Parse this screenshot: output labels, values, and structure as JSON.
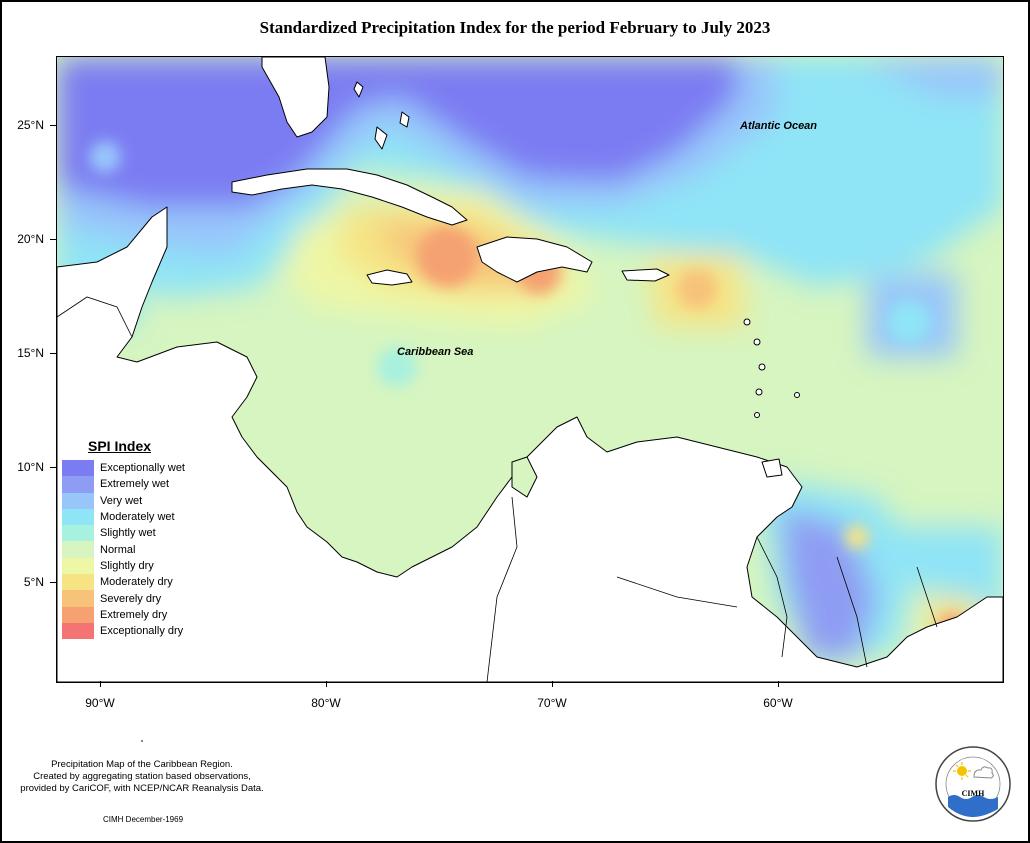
{
  "title": "Standardized Precipitation Index for the period February to July 2023",
  "map": {
    "longitude_range": [
      -92,
      -50
    ],
    "latitude_range": [
      1,
      28.5
    ],
    "y_axis_labels": [
      "25°N",
      "20°N",
      "15°N",
      "10°N",
      "5°N"
    ],
    "x_axis_labels": [
      "90°W",
      "80°W",
      "70°W",
      "60°W"
    ],
    "region_labels": {
      "atlantic": "Atlantic Ocean",
      "caribbean": "Caribbean Sea"
    },
    "colors": {
      "land": "#ffffff",
      "coast": "#000000"
    }
  },
  "legend": {
    "title": "SPI Index",
    "items": [
      {
        "label": "Exceptionally wet",
        "color": "#7b7bf2"
      },
      {
        "label": "Extremely wet",
        "color": "#8f9cf3"
      },
      {
        "label": "Very wet",
        "color": "#98c6fb"
      },
      {
        "label": "Moderately wet",
        "color": "#8fe4f6"
      },
      {
        "label": "Slightly wet",
        "color": "#a7f1df"
      },
      {
        "label": "Normal",
        "color": "#d6f5c0"
      },
      {
        "label": "Slightly dry",
        "color": "#eef7a6"
      },
      {
        "label": "Moderately dry",
        "color": "#f6e484"
      },
      {
        "label": "Severely dry",
        "color": "#f7c27a"
      },
      {
        "label": "Extremely dry",
        "color": "#f5a171"
      },
      {
        "label": "Exceptionally dry",
        "color": "#f47373"
      }
    ]
  },
  "footnote": {
    "line1": "Precipitation Map of the Caribbean Region.",
    "line2": "Created by aggregating station based observations,",
    "line3": "provided by CariCOF, with NCEP/NCAR Reanalysis Data.",
    "credit": "CIMH December-1969"
  },
  "logo": {
    "name": "CIMH"
  }
}
